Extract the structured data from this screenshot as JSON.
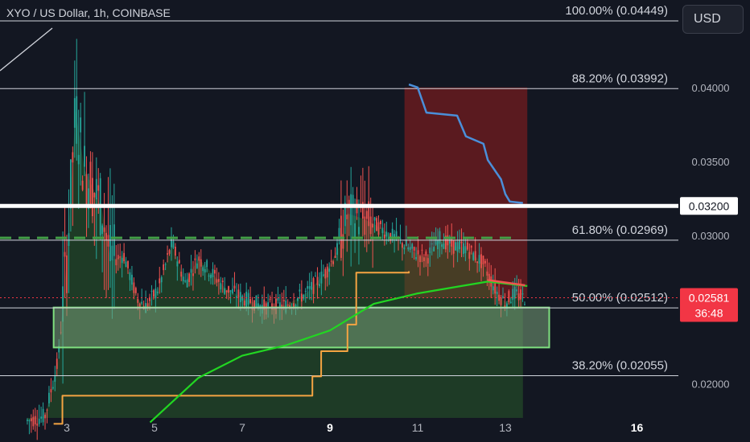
{
  "header": {
    "symbol_title": "XYO / US Dollar, 1h, COINBASE",
    "currency_button": "USD"
  },
  "price_scale": {
    "ticks": [
      "0.04000",
      "0.03500",
      "0.03000",
      "0.02000"
    ],
    "marked_level": "0.03200",
    "last_price": "0.02581",
    "countdown": "36:48"
  },
  "time_scale": {
    "ticks": [
      "3",
      "5",
      "7",
      "9",
      "11",
      "13",
      "16"
    ],
    "bold_ticks": [
      "9",
      "16"
    ]
  },
  "colors": {
    "background": "#131722",
    "candle_up": "#26a69a",
    "candle_down": "#ef5350",
    "fib_line": "#d1d4dc",
    "green_ma": "#22d622",
    "orange_step": "#f5a442",
    "blue_step": "#4a8fd9",
    "dashed_level": "#43a047",
    "zone_fill": "#6b8f6b",
    "last_price_tag": "#f23645"
  },
  "chart_data": {
    "type": "line",
    "title": "XYO / US Dollar, 1h, COINBASE",
    "xlabel": "",
    "ylabel": "",
    "x_ticks": [
      "3",
      "5",
      "7",
      "9",
      "11",
      "13",
      "16"
    ],
    "ylim": [
      0.0177,
      0.0459
    ],
    "fib_levels": [
      {
        "label": "100.00% (0.04449)",
        "value": 0.04449
      },
      {
        "label": "88.20% (0.03992)",
        "value": 0.03992
      },
      {
        "label": "61.80% (0.02969)",
        "value": 0.02969
      },
      {
        "label": "50.00% (0.02512)",
        "value": 0.02512
      },
      {
        "label": "38.20% (0.02055)",
        "value": 0.02055
      }
    ],
    "horizontal_levels": [
      {
        "kind": "solid-white",
        "value": 0.032
      },
      {
        "kind": "dashed-green",
        "value": 0.02985
      }
    ],
    "demand_zone": {
      "day_from": 2.7,
      "day_to": 14.0,
      "price_low": 0.02245,
      "price_high": 0.02515
    },
    "short_box": {
      "day_from": 10.7,
      "day_to": 13.5,
      "price_top": 0.04,
      "price_bottom": 0.0258
    },
    "last_price": 0.02581,
    "price_series": [
      {
        "day": 2.1,
        "value": 0.0175
      },
      {
        "day": 2.5,
        "value": 0.0178
      },
      {
        "day": 2.8,
        "value": 0.0215
      },
      {
        "day": 3.0,
        "value": 0.0284
      },
      {
        "day": 3.2,
        "value": 0.0385
      },
      {
        "day": 3.4,
        "value": 0.0345
      },
      {
        "day": 3.6,
        "value": 0.0332
      },
      {
        "day": 3.8,
        "value": 0.0318
      },
      {
        "day": 4.0,
        "value": 0.0283
      },
      {
        "day": 4.3,
        "value": 0.0287
      },
      {
        "day": 4.6,
        "value": 0.0258
      },
      {
        "day": 4.8,
        "value": 0.0252
      },
      {
        "day": 5.1,
        "value": 0.0265
      },
      {
        "day": 5.4,
        "value": 0.0295
      },
      {
        "day": 5.7,
        "value": 0.0268
      },
      {
        "day": 6.0,
        "value": 0.0285
      },
      {
        "day": 6.3,
        "value": 0.0275
      },
      {
        "day": 6.6,
        "value": 0.0265
      },
      {
        "day": 7.0,
        "value": 0.0258
      },
      {
        "day": 7.5,
        "value": 0.0252
      },
      {
        "day": 8.0,
        "value": 0.0253
      },
      {
        "day": 8.5,
        "value": 0.0262
      },
      {
        "day": 8.9,
        "value": 0.0275
      },
      {
        "day": 9.2,
        "value": 0.0292
      },
      {
        "day": 9.4,
        "value": 0.0315
      },
      {
        "day": 9.7,
        "value": 0.0312
      },
      {
        "day": 10.0,
        "value": 0.0308
      },
      {
        "day": 10.3,
        "value": 0.0302
      },
      {
        "day": 10.6,
        "value": 0.0296
      },
      {
        "day": 10.9,
        "value": 0.0289
      },
      {
        "day": 11.2,
        "value": 0.0285
      },
      {
        "day": 11.5,
        "value": 0.0298
      },
      {
        "day": 11.8,
        "value": 0.0293
      },
      {
        "day": 12.1,
        "value": 0.0292
      },
      {
        "day": 12.5,
        "value": 0.0281
      },
      {
        "day": 12.8,
        "value": 0.0262
      },
      {
        "day": 13.0,
        "value": 0.0255
      },
      {
        "day": 13.2,
        "value": 0.0261
      },
      {
        "day": 13.4,
        "value": 0.0258
      }
    ],
    "series": [
      {
        "values": [
          {
            "day": 4.9,
            "value": 0.0174
          },
          {
            "day": 6.0,
            "value": 0.0204
          },
          {
            "day": 7.0,
            "value": 0.0219
          },
          {
            "day": 8.0,
            "value": 0.0226
          },
          {
            "day": 9.0,
            "value": 0.0236
          },
          {
            "day": 10.0,
            "value": 0.0254
          },
          {
            "day": 11.0,
            "value": 0.0261
          },
          {
            "day": 12.0,
            "value": 0.0266
          },
          {
            "day": 12.6,
            "value": 0.0269
          },
          {
            "day": 13.5,
            "value": 0.0266
          }
        ]
      },
      {
        "values": [
          {
            "day": 2.7,
            "value": 0.0173
          },
          {
            "day": 2.9,
            "value": 0.0192
          },
          {
            "day": 8.4,
            "value": 0.0192
          },
          {
            "day": 8.6,
            "value": 0.0205
          },
          {
            "day": 8.8,
            "value": 0.0222
          },
          {
            "day": 9.4,
            "value": 0.024
          },
          {
            "day": 9.6,
            "value": 0.0275
          },
          {
            "day": 10.6,
            "value": 0.0275
          },
          {
            "day": 10.8,
            "value": 0.0276
          }
        ]
      },
      {
        "values": [
          {
            "day": 10.8,
            "value": 0.0402
          },
          {
            "day": 11.0,
            "value": 0.04
          },
          {
            "day": 11.2,
            "value": 0.0383
          },
          {
            "day": 11.9,
            "value": 0.0381
          },
          {
            "day": 12.1,
            "value": 0.0367
          },
          {
            "day": 12.5,
            "value": 0.0362
          },
          {
            "day": 12.6,
            "value": 0.0351
          },
          {
            "day": 12.9,
            "value": 0.0338
          },
          {
            "day": 13.0,
            "value": 0.0328
          },
          {
            "day": 13.1,
            "value": 0.0323
          },
          {
            "day": 13.4,
            "value": 0.0322
          }
        ]
      }
    ]
  }
}
